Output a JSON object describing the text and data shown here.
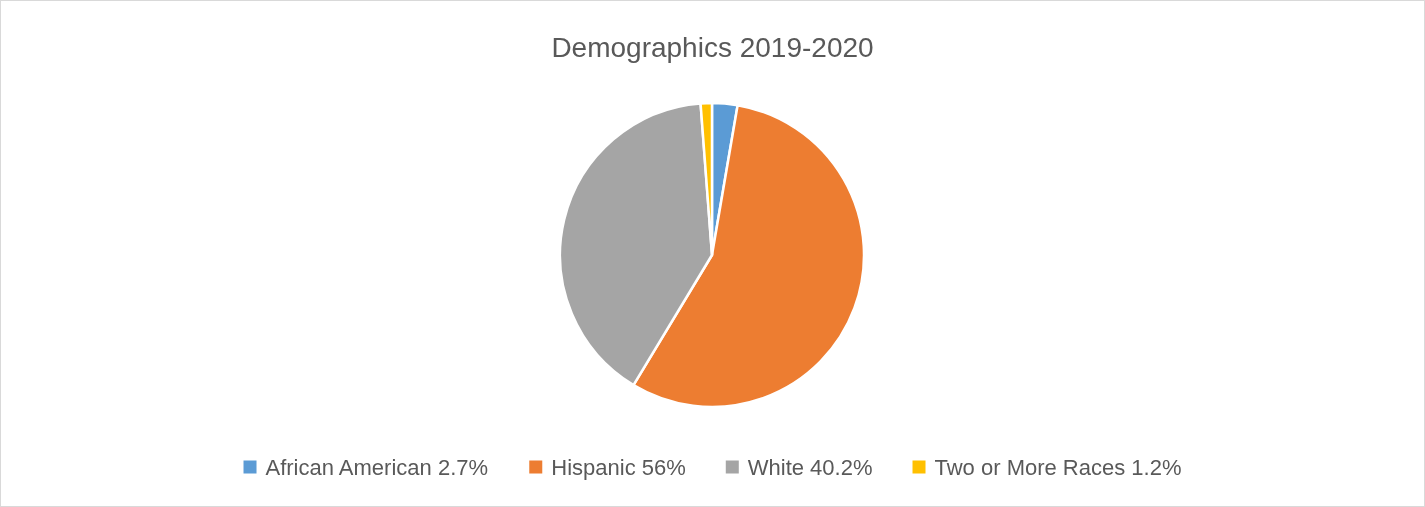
{
  "chart_data": {
    "type": "pie",
    "title": "Demographics 2019-2020",
    "categories": [
      "African American 2.7%",
      "Hispanic 56%",
      "White 40.2%",
      "Two or More Races 1.2%"
    ],
    "values": [
      2.7,
      56,
      40.2,
      1.2
    ],
    "colors": [
      "#5b9bd5",
      "#ed7d31",
      "#a5a5a5",
      "#ffc000"
    ],
    "legend": "bottom"
  }
}
